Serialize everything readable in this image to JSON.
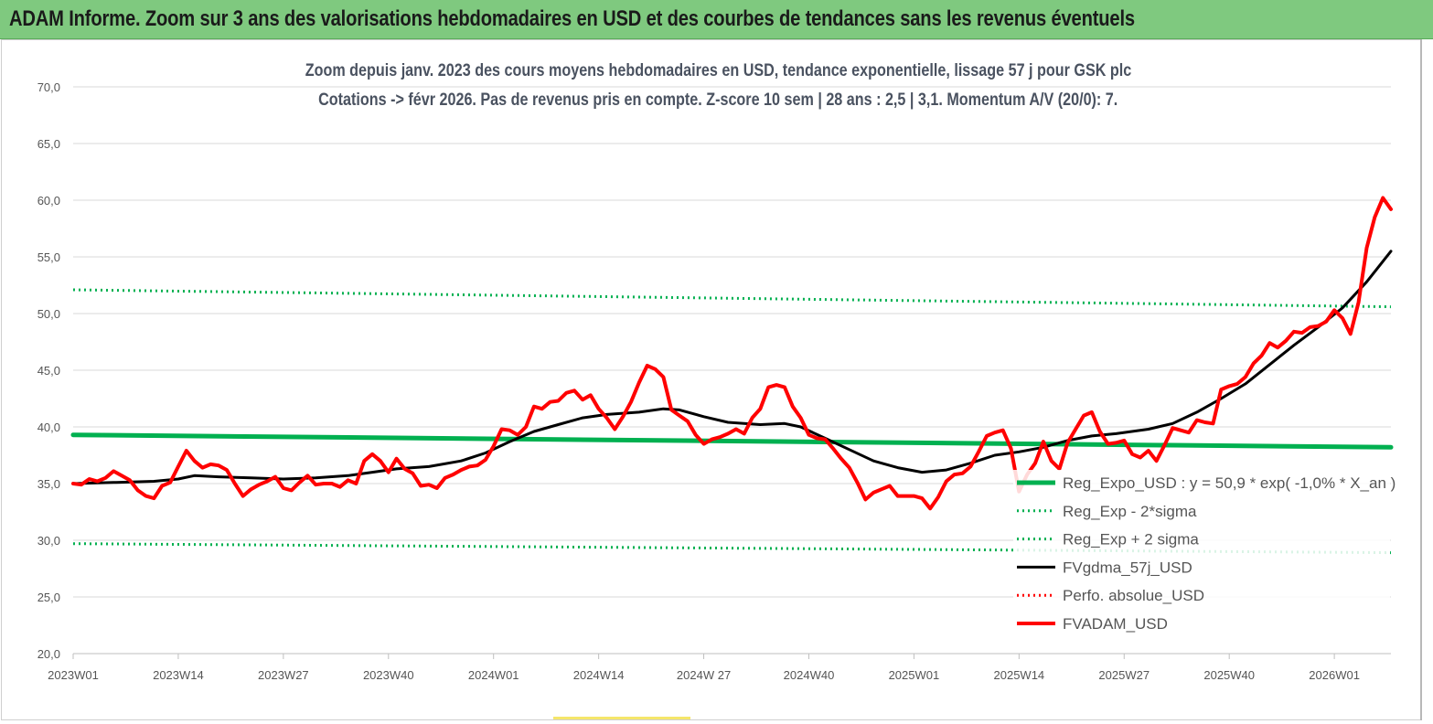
{
  "banner": {
    "title": "ADAM Informe. Zoom sur 3 ans des valorisations hebdomadaires en USD et des courbes de tendances sans les revenus éventuels"
  },
  "chart_data": {
    "type": "line",
    "title_line1": "Zoom depuis janv. 2023 des cours moyens hebdomadaires en USD, tendance exponentielle, lissage 57 j pour GSK plc",
    "title_line2": "Cotations -> févr 2026. Pas de revenus pris en compte. Z-score 10 sem | 28 ans : 2,5 | 3,1. Momentum A/V (20/0): 7.",
    "xlabel": "",
    "ylabel": "",
    "ylim": [
      20,
      70
    ],
    "yticks": [
      "20,0",
      "25,0",
      "30,0",
      "35,0",
      "40,0",
      "45,0",
      "50,0",
      "55,0",
      "60,0",
      "65,0",
      "70,0"
    ],
    "xlim_weeks": [
      0,
      163
    ],
    "x_ticks": [
      {
        "label": "2023W01",
        "week": 0
      },
      {
        "label": "2023W14",
        "week": 13
      },
      {
        "label": "2023W27",
        "week": 26
      },
      {
        "label": "2023W40",
        "week": 39
      },
      {
        "label": "2024W01",
        "week": 52
      },
      {
        "label": "2024W14",
        "week": 65
      },
      {
        "label": "2024W 27",
        "week": 78
      },
      {
        "label": "2024W40",
        "week": 91
      },
      {
        "label": "2025W01",
        "week": 104
      },
      {
        "label": "2025W14",
        "week": 117
      },
      {
        "label": "2025W27",
        "week": 130
      },
      {
        "label": "2025W40",
        "week": 143
      },
      {
        "label": "2026W01",
        "week": 156
      }
    ],
    "grid": "horizontal",
    "legend_position": "right",
    "series": [
      {
        "name": "Reg_Expo_USD : y = 50,9 * exp( -1,0% *  X_an )",
        "color": "#00b050",
        "style": "solid",
        "width": 5,
        "points": [
          [
            0,
            39.3
          ],
          [
            163,
            38.2
          ]
        ]
      },
      {
        "name": "Reg_Exp - 2*sigma",
        "color": "#00b050",
        "style": "dotted",
        "width": 3,
        "points": [
          [
            0,
            29.7
          ],
          [
            163,
            28.9
          ]
        ]
      },
      {
        "name": "Reg_Exp + 2 sigma",
        "color": "#00b050",
        "style": "dotted",
        "width": 3,
        "points": [
          [
            0,
            52.1
          ],
          [
            163,
            50.6
          ]
        ]
      },
      {
        "name": "FVgdma_57j_USD",
        "color": "#000000",
        "style": "solid",
        "width": 3,
        "points": [
          [
            0,
            35.0
          ],
          [
            5,
            35.1
          ],
          [
            10,
            35.2
          ],
          [
            13,
            35.4
          ],
          [
            15,
            35.7
          ],
          [
            18,
            35.6
          ],
          [
            22,
            35.5
          ],
          [
            26,
            35.4
          ],
          [
            30,
            35.5
          ],
          [
            34,
            35.7
          ],
          [
            37,
            36.0
          ],
          [
            40,
            36.3
          ],
          [
            44,
            36.5
          ],
          [
            48,
            37.0
          ],
          [
            51,
            37.7
          ],
          [
            54,
            38.7
          ],
          [
            57,
            39.6
          ],
          [
            60,
            40.2
          ],
          [
            63,
            40.8
          ],
          [
            66,
            41.1
          ],
          [
            70,
            41.3
          ],
          [
            73,
            41.6
          ],
          [
            75,
            41.5
          ],
          [
            78,
            40.9
          ],
          [
            81,
            40.4
          ],
          [
            85,
            40.2
          ],
          [
            88,
            40.3
          ],
          [
            90,
            40.0
          ],
          [
            93,
            39.0
          ],
          [
            96,
            38.0
          ],
          [
            99,
            37.0
          ],
          [
            102,
            36.4
          ],
          [
            105,
            36.0
          ],
          [
            108,
            36.2
          ],
          [
            111,
            36.8
          ],
          [
            114,
            37.5
          ],
          [
            117,
            37.8
          ],
          [
            120,
            38.2
          ],
          [
            123,
            38.8
          ],
          [
            126,
            39.2
          ],
          [
            129,
            39.4
          ],
          [
            133,
            39.8
          ],
          [
            136,
            40.3
          ],
          [
            139,
            41.3
          ],
          [
            142,
            42.5
          ],
          [
            145,
            43.8
          ],
          [
            148,
            45.5
          ],
          [
            151,
            47.2
          ],
          [
            154,
            48.8
          ],
          [
            157,
            50.5
          ],
          [
            160,
            52.8
          ],
          [
            163,
            55.5
          ]
        ]
      },
      {
        "name": "Perfo. absolue_USD",
        "color": "#ff0000",
        "style": "dotted",
        "width": 3,
        "points": []
      },
      {
        "name": "FVADAM_USD",
        "color": "#ff0000",
        "style": "solid",
        "width": 4,
        "points": [
          [
            0,
            35.0
          ],
          [
            1,
            34.9
          ],
          [
            2,
            35.4
          ],
          [
            3,
            35.2
          ],
          [
            4,
            35.5
          ],
          [
            5,
            36.1
          ],
          [
            6,
            35.7
          ],
          [
            7,
            35.3
          ],
          [
            8,
            34.4
          ],
          [
            9,
            33.9
          ],
          [
            10,
            33.7
          ],
          [
            11,
            34.8
          ],
          [
            12,
            35.1
          ],
          [
            13,
            36.5
          ],
          [
            14,
            37.9
          ],
          [
            15,
            37.0
          ],
          [
            16,
            36.4
          ],
          [
            17,
            36.7
          ],
          [
            18,
            36.6
          ],
          [
            19,
            36.2
          ],
          [
            20,
            35.0
          ],
          [
            21,
            33.9
          ],
          [
            22,
            34.5
          ],
          [
            23,
            34.9
          ],
          [
            24,
            35.2
          ],
          [
            25,
            35.6
          ],
          [
            26,
            34.6
          ],
          [
            27,
            34.4
          ],
          [
            28,
            35.1
          ],
          [
            29,
            35.7
          ],
          [
            30,
            34.9
          ],
          [
            31,
            35.0
          ],
          [
            32,
            35.0
          ],
          [
            33,
            34.7
          ],
          [
            34,
            35.3
          ],
          [
            35,
            35.0
          ],
          [
            36,
            37.0
          ],
          [
            37,
            37.6
          ],
          [
            38,
            37.0
          ],
          [
            39,
            36.0
          ],
          [
            40,
            37.2
          ],
          [
            41,
            36.3
          ],
          [
            42,
            35.9
          ],
          [
            43,
            34.8
          ],
          [
            44,
            34.9
          ],
          [
            45,
            34.6
          ],
          [
            46,
            35.5
          ],
          [
            47,
            35.8
          ],
          [
            48,
            36.2
          ],
          [
            49,
            36.5
          ],
          [
            50,
            36.6
          ],
          [
            51,
            37.1
          ],
          [
            52,
            38.3
          ],
          [
            53,
            39.8
          ],
          [
            54,
            39.7
          ],
          [
            55,
            39.3
          ],
          [
            56,
            40.0
          ],
          [
            57,
            41.8
          ],
          [
            58,
            41.6
          ],
          [
            59,
            42.2
          ],
          [
            60,
            42.3
          ],
          [
            61,
            43.0
          ],
          [
            62,
            43.2
          ],
          [
            63,
            42.4
          ],
          [
            64,
            42.8
          ],
          [
            65,
            41.6
          ],
          [
            66,
            40.8
          ],
          [
            67,
            39.8
          ],
          [
            68,
            40.9
          ],
          [
            69,
            42.2
          ],
          [
            70,
            43.9
          ],
          [
            71,
            45.4
          ],
          [
            72,
            45.1
          ],
          [
            73,
            44.4
          ],
          [
            74,
            41.5
          ],
          [
            75,
            41.0
          ],
          [
            76,
            40.5
          ],
          [
            77,
            39.3
          ],
          [
            78,
            38.5
          ],
          [
            79,
            38.9
          ],
          [
            80,
            39.1
          ],
          [
            81,
            39.4
          ],
          [
            82,
            39.8
          ],
          [
            83,
            39.4
          ],
          [
            84,
            40.8
          ],
          [
            85,
            41.6
          ],
          [
            86,
            43.5
          ],
          [
            87,
            43.7
          ],
          [
            88,
            43.5
          ],
          [
            89,
            41.8
          ],
          [
            90,
            40.8
          ],
          [
            91,
            39.3
          ],
          [
            92,
            39.0
          ],
          [
            93,
            38.9
          ],
          [
            94,
            38.1
          ],
          [
            95,
            37.2
          ],
          [
            96,
            36.4
          ],
          [
            97,
            35.1
          ],
          [
            98,
            33.6
          ],
          [
            99,
            34.2
          ],
          [
            100,
            34.5
          ],
          [
            101,
            34.8
          ],
          [
            102,
            33.9
          ],
          [
            103,
            33.9
          ],
          [
            104,
            33.9
          ],
          [
            105,
            33.7
          ],
          [
            106,
            32.8
          ],
          [
            107,
            33.8
          ],
          [
            108,
            35.2
          ],
          [
            109,
            35.8
          ],
          [
            110,
            35.9
          ],
          [
            111,
            36.5
          ],
          [
            112,
            37.8
          ],
          [
            113,
            39.2
          ],
          [
            114,
            39.5
          ],
          [
            115,
            39.7
          ],
          [
            116,
            38.1
          ],
          [
            117,
            34.3
          ],
          [
            118,
            35.8
          ],
          [
            119,
            36.8
          ],
          [
            120,
            38.7
          ],
          [
            121,
            37.0
          ],
          [
            122,
            36.3
          ],
          [
            123,
            38.6
          ],
          [
            124,
            39.8
          ],
          [
            125,
            41.0
          ],
          [
            126,
            41.3
          ],
          [
            127,
            39.6
          ],
          [
            128,
            38.5
          ],
          [
            129,
            38.6
          ],
          [
            130,
            38.8
          ],
          [
            131,
            37.6
          ],
          [
            132,
            37.3
          ],
          [
            133,
            37.9
          ],
          [
            134,
            37.0
          ],
          [
            135,
            38.4
          ],
          [
            136,
            39.9
          ],
          [
            137,
            39.7
          ],
          [
            138,
            39.5
          ],
          [
            139,
            40.6
          ],
          [
            140,
            40.4
          ],
          [
            141,
            40.3
          ],
          [
            142,
            43.3
          ],
          [
            143,
            43.6
          ],
          [
            144,
            43.8
          ],
          [
            145,
            44.4
          ],
          [
            146,
            45.6
          ],
          [
            147,
            46.3
          ],
          [
            148,
            47.4
          ],
          [
            149,
            47.0
          ],
          [
            150,
            47.6
          ],
          [
            151,
            48.4
          ],
          [
            152,
            48.3
          ],
          [
            153,
            48.8
          ],
          [
            154,
            48.9
          ],
          [
            155,
            49.3
          ],
          [
            156,
            50.3
          ],
          [
            157,
            49.6
          ],
          [
            158,
            48.2
          ],
          [
            159,
            51.0
          ],
          [
            160,
            55.8
          ],
          [
            161,
            58.5
          ],
          [
            162,
            60.2
          ],
          [
            163,
            59.2
          ]
        ]
      }
    ]
  }
}
